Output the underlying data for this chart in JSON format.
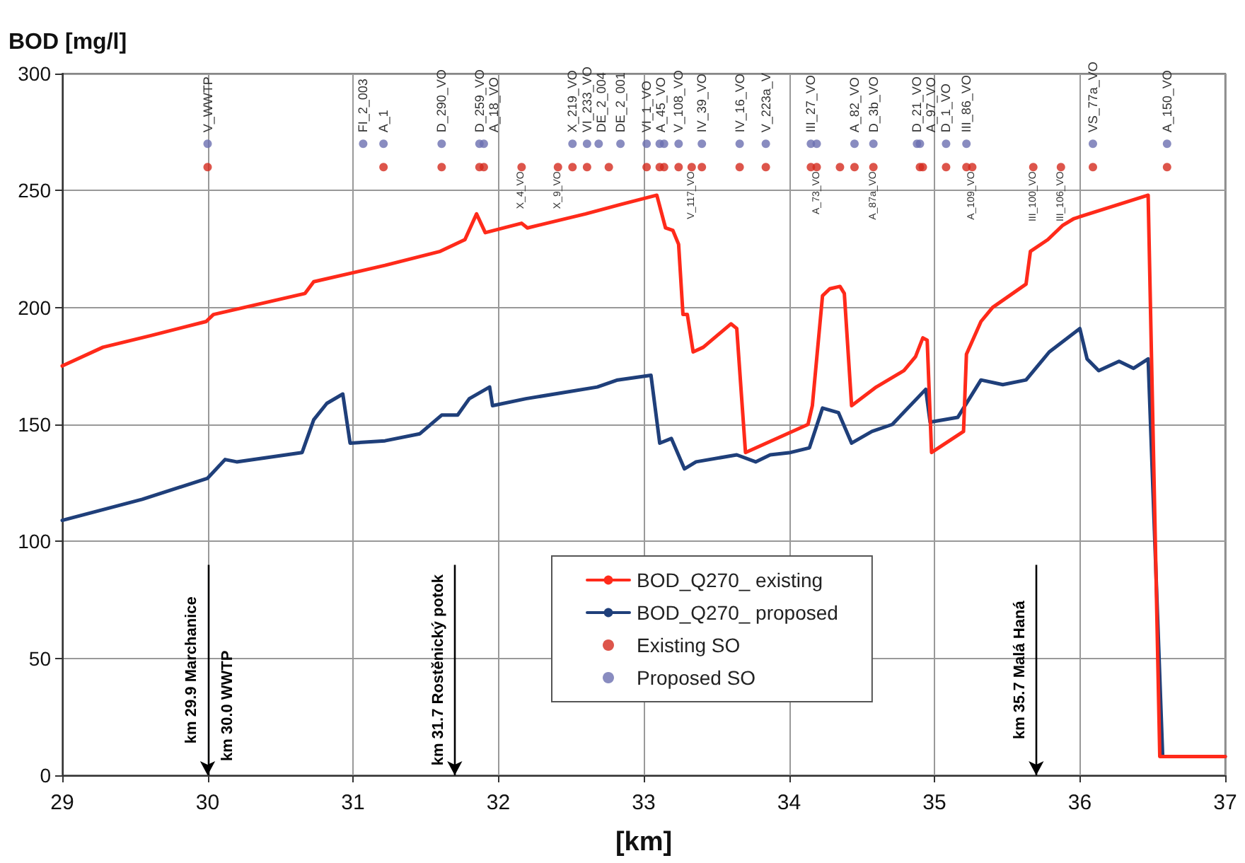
{
  "chart_data": {
    "type": "line",
    "xlabel": "[km]",
    "ylabel": "BOD [mg/l]",
    "xlim": [
      29,
      37
    ],
    "xticks": [
      29,
      30,
      31,
      32,
      33,
      34,
      35,
      36,
      37
    ],
    "ylim": [
      0,
      300
    ],
    "yticks": [
      0,
      50,
      100,
      150,
      200,
      250,
      300
    ],
    "grid": true,
    "legend": "bottom",
    "series": [
      {
        "name": "BOD_Q270_ existing",
        "marker": "none",
        "line_style": "solid",
        "color": "#ff2a1a",
        "x": [
          29,
          29.28,
          29.61,
          29.99,
          30.04,
          30.67,
          30.73,
          31.22,
          31.6,
          31.77,
          31.85,
          31.91,
          32.16,
          32.2,
          32.6,
          32.84,
          33.09,
          33.15,
          33.2,
          33.24,
          33.27,
          33.3,
          33.34,
          33.41,
          33.6,
          33.64,
          33.7,
          34.13,
          34.16,
          34.23,
          34.28,
          34.35,
          34.38,
          34.43,
          34.6,
          34.79,
          34.87,
          34.92,
          34.95,
          34.98,
          35.2,
          35.22,
          35.32,
          35.4,
          35.63,
          35.66,
          35.78,
          35.88,
          35.96,
          36.47,
          36.55,
          37
        ],
        "values": [
          175,
          183,
          188,
          194,
          197,
          206,
          211,
          218,
          224,
          229,
          240,
          232,
          236,
          234,
          240,
          244,
          248,
          234,
          233,
          227,
          197,
          197,
          181,
          183,
          193,
          191,
          138,
          150,
          158,
          205,
          208,
          209,
          206,
          158,
          166,
          173,
          179,
          187,
          186,
          138,
          147,
          180,
          194,
          200,
          210,
          224,
          229,
          235,
          238,
          248,
          8,
          8
        ]
      },
      {
        "name": "BOD_Q270_ proposed",
        "marker": "none",
        "line_style": "solid",
        "color": "#1f3f7a",
        "x": [
          29,
          29.55,
          30,
          30.12,
          30.2,
          30.65,
          30.73,
          30.82,
          30.93,
          30.98,
          31.22,
          31.46,
          31.61,
          31.72,
          31.8,
          31.94,
          31.96,
          32.19,
          32.68,
          32.82,
          33.05,
          33.11,
          33.19,
          33.28,
          33.36,
          33.64,
          33.77,
          33.87,
          34.01,
          34.14,
          34.23,
          34.34,
          34.43,
          34.57,
          34.71,
          34.94,
          34.97,
          35.16,
          35.32,
          35.47,
          35.63,
          35.79,
          36,
          36.05,
          36.13,
          36.27,
          36.37,
          36.47,
          36.57,
          37
        ],
        "values": [
          109,
          118,
          127,
          135,
          134,
          138,
          152,
          159,
          163,
          142,
          143,
          146,
          154,
          154,
          161,
          166,
          158,
          161,
          166,
          169,
          171,
          142,
          144,
          131,
          134,
          137,
          134,
          137,
          138,
          140,
          157,
          155,
          142,
          147,
          150,
          165,
          151,
          153,
          169,
          167,
          169,
          181,
          191,
          178,
          173,
          177,
          174,
          178,
          8,
          8
        ]
      },
      {
        "name": "Existing SO",
        "type": "scatter",
        "marker": "circle",
        "color": "#d42a1e",
        "x": [
          30,
          31.21,
          31.61,
          31.87,
          31.9,
          32.16,
          32.41,
          32.51,
          32.61,
          32.76,
          33.02,
          33.11,
          33.14,
          33.24,
          33.33,
          33.4,
          33.66,
          33.84,
          34.15,
          34.19,
          34.35,
          34.45,
          34.58,
          34.9,
          34.92,
          35.08,
          35.22,
          35.26,
          35.68,
          35.87,
          36.09,
          36.6
        ],
        "values": [
          260,
          260,
          260,
          260,
          260,
          260,
          260,
          260,
          260,
          260,
          260,
          260,
          260,
          260,
          260,
          260,
          260,
          260,
          260,
          260,
          260,
          260,
          260,
          260,
          260,
          260,
          260,
          260,
          260,
          260,
          260,
          260
        ]
      },
      {
        "name": "Proposed SO",
        "type": "scatter",
        "marker": "circle",
        "color": "#6b6fb0",
        "x": [
          30,
          31.07,
          31.21,
          31.61,
          31.87,
          31.9,
          32.51,
          32.61,
          32.69,
          32.84,
          33.02,
          33.11,
          33.14,
          33.24,
          33.4,
          33.66,
          33.84,
          34.15,
          34.19,
          34.45,
          34.58,
          34.88,
          34.9,
          35.08,
          35.22,
          36.09,
          36.6
        ],
        "values": [
          270,
          270,
          270,
          270,
          270,
          270,
          270,
          270,
          270,
          270,
          270,
          270,
          270,
          270,
          270,
          270,
          270,
          270,
          270,
          270,
          270,
          270,
          270,
          270,
          270,
          270,
          270
        ]
      }
    ],
    "ref_lines": [
      {
        "axis": "x",
        "value": 30,
        "label": "km 29.9 Marchanice"
      },
      {
        "axis": "x",
        "value": 31.7,
        "label": "km 31.7 Rostěnický potok"
      },
      {
        "axis": "x",
        "value": 35.7,
        "label": "km 35.7 Malá Haná"
      }
    ],
    "annotations": [
      "km 30.0 WWTP",
      {
        "text": "V_WWTP",
        "x": 30,
        "y": 270
      },
      {
        "text": "FI_2_003",
        "x": 31.07,
        "y": 270
      },
      {
        "text": "A_1",
        "x": 31.21,
        "y": 270
      },
      {
        "text": "D_290_VO",
        "x": 31.61,
        "y": 270
      },
      {
        "text": "D_259_VO",
        "x": 31.87,
        "y": 270
      },
      {
        "text": "A_18_VO",
        "x": 31.9,
        "y": 270
      },
      {
        "text": "X_4_VO",
        "x": 32.16,
        "y": 260
      },
      {
        "text": "X_9_VO",
        "x": 32.41,
        "y": 260
      },
      {
        "text": "X_219_VO",
        "x": 32.51,
        "y": 270
      },
      {
        "text": "VI_233_VO",
        "x": 32.61,
        "y": 270
      },
      {
        "text": "DE_2_004",
        "x": 32.69,
        "y": 270
      },
      {
        "text": "DE_2_001",
        "x": 32.84,
        "y": 270
      },
      {
        "text": "VI_1_VO",
        "x": 33.02,
        "y": 270
      },
      {
        "text": "A_45_VO",
        "x": 33.11,
        "y": 270
      },
      {
        "text": "V_108_VO",
        "x": 33.24,
        "y": 270
      },
      {
        "text": "IV_39_VO",
        "x": 33.4,
        "y": 270
      },
      {
        "text": "IV_16_VO",
        "x": 33.66,
        "y": 270
      },
      {
        "text": "V_223a_V",
        "x": 33.84,
        "y": 270
      },
      {
        "text": "III_27_VO",
        "x": 34.15,
        "y": 270
      },
      {
        "text": "A_82_VO",
        "x": 34.45,
        "y": 270
      },
      {
        "text": "D_3b_VO",
        "x": 34.58,
        "y": 270
      },
      {
        "text": "V_117_VO",
        "x": 33.33,
        "y": 260
      },
      {
        "text": "A_73_VO",
        "x": 34.19,
        "y": 260
      },
      {
        "text": "A_87a_VO",
        "x": 34.58,
        "y": 260
      },
      {
        "text": "D_21_VO",
        "x": 34.88,
        "y": 270
      },
      {
        "text": "A_97_VO",
        "x": 34.9,
        "y": 270
      },
      {
        "text": "D_1_VO",
        "x": 35.08,
        "y": 270
      },
      {
        "text": "III_86_VO",
        "x": 35.22,
        "y": 270
      },
      {
        "text": "VS_77a_VO",
        "x": 36.09,
        "y": 270
      },
      {
        "text": "A_150_VO",
        "x": 36.6,
        "y": 270
      },
      {
        "text": "A_109_VO",
        "x": 35.26,
        "y": 260
      },
      {
        "text": "III_100_VO",
        "x": 35.68,
        "y": 260
      },
      {
        "text": "III_106_VO",
        "x": 35.87,
        "y": 260
      }
    ]
  }
}
